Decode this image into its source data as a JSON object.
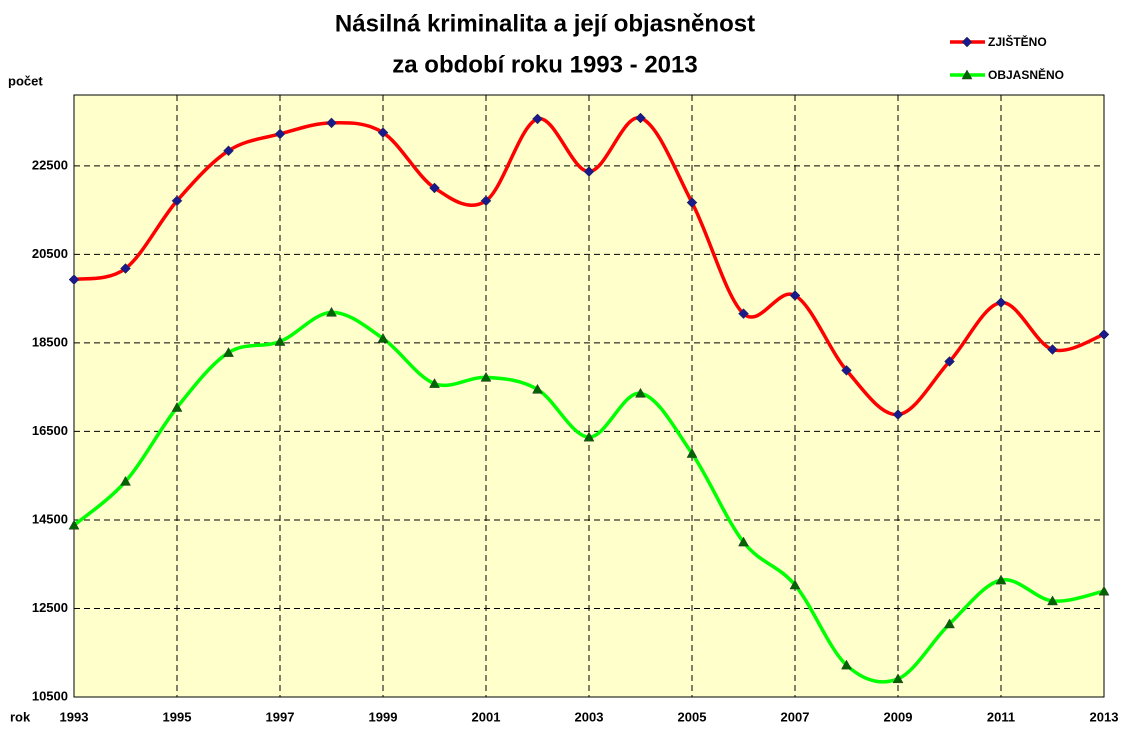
{
  "chart_data": {
    "type": "line",
    "title": [
      "Násilná kriminalita a její objasněnost",
      "za období roku 1993 - 2013"
    ],
    "y_label": "počet",
    "x_label": "rok",
    "x": [
      1993,
      1994,
      1995,
      1996,
      1997,
      1998,
      1999,
      2000,
      2001,
      2002,
      2003,
      2004,
      2005,
      2006,
      2007,
      2008,
      2009,
      2010,
      2011,
      2012,
      2013
    ],
    "series": [
      {
        "name": "ZJIŠTĚNO",
        "color": "#ff0000",
        "marker_color": "#1a1a8c",
        "marker": "diamond",
        "values": [
          19930,
          20180,
          21710,
          22840,
          23220,
          23470,
          23250,
          22000,
          21710,
          23560,
          22370,
          23580,
          21670,
          19160,
          19570,
          17880,
          16880,
          18080,
          19410,
          18350,
          18690
        ]
      },
      {
        "name": "OBJASNĚNO",
        "color": "#00ff00",
        "marker_color": "#006400",
        "marker": "triangle",
        "values": [
          14380,
          15370,
          17040,
          18280,
          18530,
          19190,
          18600,
          17580,
          17720,
          17450,
          16370,
          17360,
          16000,
          14000,
          13030,
          11220,
          10910,
          12150,
          13140,
          12670,
          12890
        ]
      }
    ],
    "xlim": [
      1993,
      2013
    ],
    "xticks": [
      1993,
      1995,
      1997,
      1999,
      2001,
      2003,
      2005,
      2007,
      2009,
      2011,
      2013
    ],
    "ylim": [
      10500,
      24100
    ],
    "yticks": [
      10500,
      12500,
      14500,
      16500,
      18500,
      20500,
      22500
    ],
    "grid": true,
    "legend": "top-right"
  }
}
